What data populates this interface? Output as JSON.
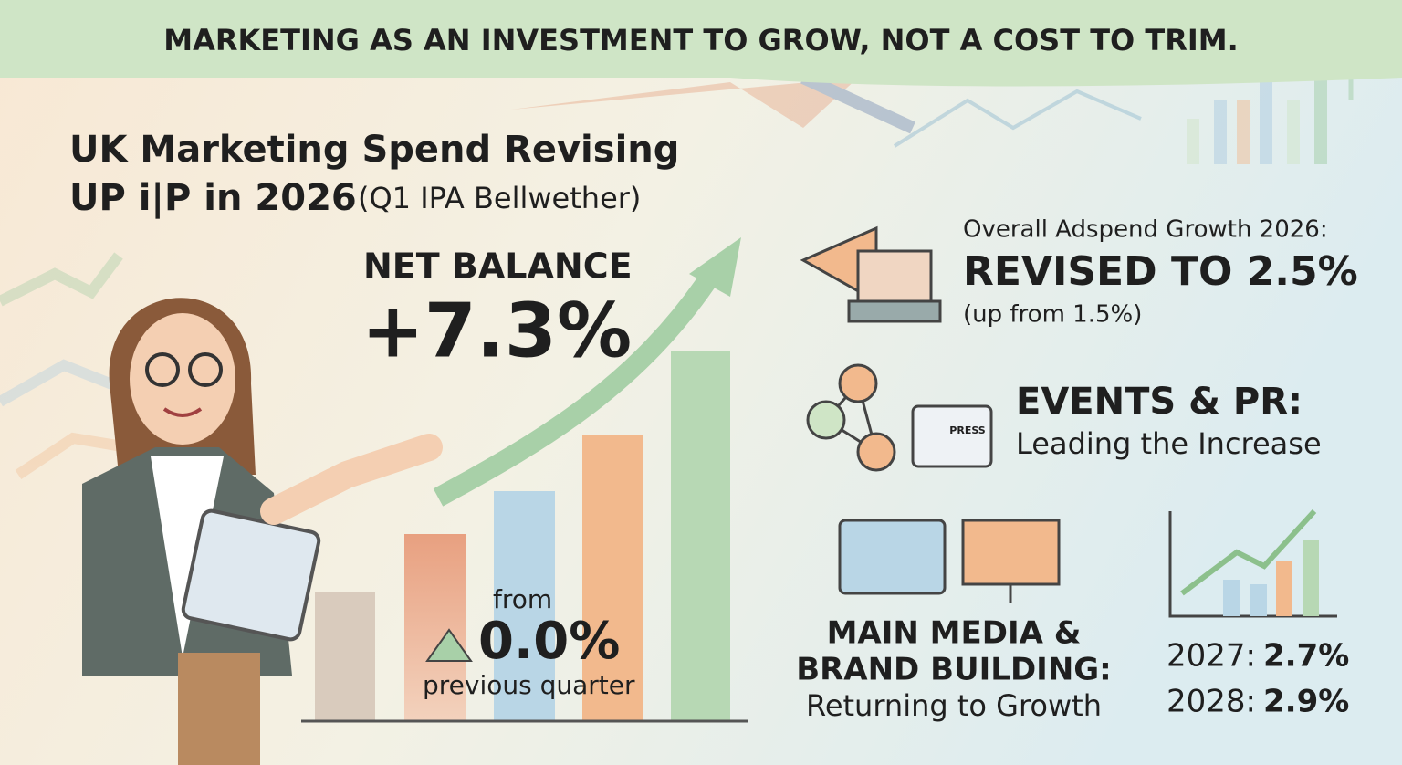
{
  "banner": {
    "text": "MARKETING AS AN INVESTMENT TO GROW, NOT A COST TO TRIM."
  },
  "headline": {
    "line1": "UK Marketing Spend Revising",
    "line2": "UP i|P in 2026",
    "source": "(Q1 IPA Bellwether)"
  },
  "net_balance": {
    "label": "NET BALANCE",
    "value": "+7.3%",
    "from": "from",
    "previous": "0.0%",
    "previous_label": "previous quarter"
  },
  "adspend": {
    "label": "Overall Adspend Growth 2026:",
    "headline": "REVISED TO 2.5%",
    "note": "(up from 1.5%)"
  },
  "events": {
    "badge": "PRESS",
    "title": "EVENTS & PR:",
    "subtitle": "Leading the Increase"
  },
  "media": {
    "line1": "MAIN MEDIA &",
    "line2": "BRAND BUILDING:",
    "subtitle": "Returning to Growth"
  },
  "forecast": [
    {
      "year": "2027:",
      "value": "2.7%"
    },
    {
      "year": "2028:",
      "value": "2.9%"
    }
  ]
}
